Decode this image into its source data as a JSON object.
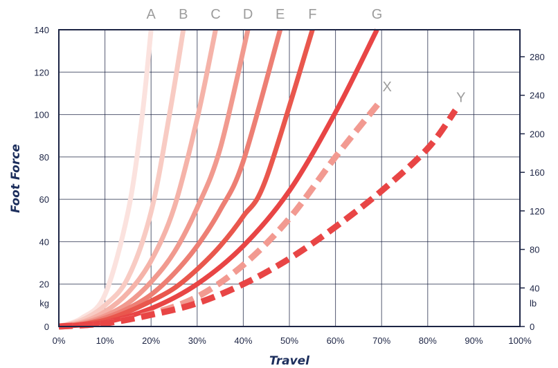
{
  "chart_data": {
    "type": "line",
    "title": "",
    "xlabel": "Travel",
    "ylabel": "Foot Force",
    "xlim": [
      0,
      100
    ],
    "ylim": [
      0,
      140
    ],
    "y2lim": [
      0,
      308
    ],
    "x_unit": "%",
    "y_unit": "kg",
    "y2_unit": "lb",
    "x_ticks": [
      "0%",
      "10%",
      "20%",
      "30%",
      "40%",
      "50%",
      "60%",
      "70%",
      "80%",
      "90%",
      "100%"
    ],
    "x_tick_values": [
      0,
      10,
      20,
      30,
      40,
      50,
      60,
      70,
      80,
      90,
      100
    ],
    "y_ticks": [
      "0",
      "20",
      "40",
      "60",
      "80",
      "100",
      "120",
      "140"
    ],
    "y_tick_values": [
      0,
      20,
      40,
      60,
      80,
      100,
      120,
      140
    ],
    "y2_ticks": [
      "0",
      "40",
      "80",
      "120",
      "160",
      "200",
      "240",
      "280"
    ],
    "y2_tick_values": [
      0,
      40,
      80,
      120,
      160,
      200,
      240,
      280
    ],
    "grid": true,
    "series": [
      {
        "name": "A",
        "color": "#fbe2de",
        "dashed": false,
        "x": [
          0,
          5,
          10,
          15,
          18,
          20
        ],
        "y": [
          0,
          4,
          15,
          54,
          98,
          140
        ]
      },
      {
        "name": "B",
        "color": "#f8cbc3",
        "dashed": false,
        "x": [
          0,
          5,
          10,
          15,
          20,
          24,
          27
        ],
        "y": [
          0,
          3,
          10,
          23,
          54,
          100,
          140
        ]
      },
      {
        "name": "C",
        "color": "#f5b3a9",
        "dashed": false,
        "x": [
          0,
          5,
          10,
          15,
          20,
          25,
          30,
          34
        ],
        "y": [
          0,
          2,
          7,
          16,
          31,
          56,
          98,
          140
        ]
      },
      {
        "name": "D",
        "color": "#f19a8f",
        "dashed": false,
        "x": [
          0,
          5,
          10,
          15,
          20,
          25,
          30,
          35,
          41
        ],
        "y": [
          0,
          1.5,
          5,
          11,
          21,
          35,
          56,
          84,
          140
        ]
      },
      {
        "name": "E",
        "color": "#ed7f74",
        "dashed": false,
        "x": [
          0,
          5,
          10,
          15,
          20,
          25,
          30,
          35,
          40,
          48
        ],
        "y": [
          0,
          1,
          4,
          8.5,
          15,
          25,
          38,
          55,
          78,
          140
        ]
      },
      {
        "name": "F",
        "color": "#e9574d",
        "dashed": false,
        "x": [
          0,
          5,
          10,
          15,
          20,
          25,
          30,
          35,
          40,
          45,
          55
        ],
        "y": [
          0,
          1,
          3,
          7,
          12,
          18,
          27,
          38,
          52,
          70,
          140
        ]
      },
      {
        "name": "G",
        "color": "#e84545",
        "dashed": false,
        "x": [
          0,
          10,
          20,
          30,
          40,
          50,
          60,
          69
        ],
        "y": [
          0,
          2,
          8.5,
          20,
          38,
          64,
          101,
          140
        ]
      },
      {
        "name": "X",
        "color": "#f29a91",
        "dashed": true,
        "x": [
          0,
          10,
          20,
          30,
          40,
          50,
          60,
          70
        ],
        "y": [
          0,
          1.5,
          6,
          14,
          29,
          51,
          80,
          107
        ]
      },
      {
        "name": "Y",
        "color": "#e84545",
        "dashed": true,
        "x": [
          0,
          10,
          20,
          30,
          40,
          50,
          60,
          70,
          80,
          86
        ],
        "y": [
          0,
          1.5,
          5.5,
          11,
          20,
          32,
          47,
          64,
          84,
          102
        ]
      }
    ]
  }
}
